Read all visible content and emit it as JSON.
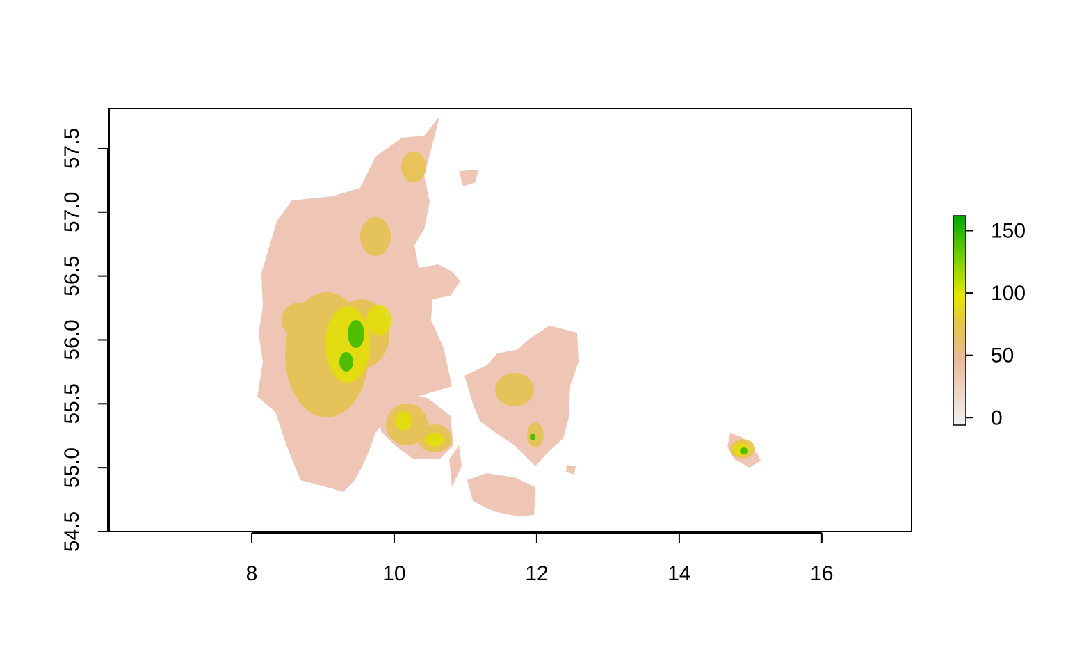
{
  "map": {
    "x_ticks": [
      "8",
      "10",
      "12",
      "14",
      "16"
    ],
    "y_ticks": [
      "54.5",
      "55.0",
      "55.5",
      "56.0",
      "56.5",
      "57.0",
      "57.5"
    ],
    "x_tick_values": [
      8,
      10,
      12,
      14,
      16
    ],
    "y_tick_values": [
      54.5,
      55.0,
      55.5,
      56.0,
      56.5,
      57.0,
      57.5
    ],
    "x_range": [
      6.0,
      17.26
    ],
    "y_range": [
      54.5,
      57.81
    ],
    "legend": {
      "ticks": [
        "0",
        "50",
        "100",
        "150"
      ],
      "tick_values": [
        0,
        50,
        100,
        150
      ],
      "range": [
        -6,
        162
      ],
      "colors": [
        "#f2f2f2",
        "#eabb9f",
        "#e6c24c",
        "#e6e600",
        "#75d000",
        "#00a600"
      ]
    },
    "land_color": "#efc6b6",
    "highland_color": "#e3c23e",
    "peak_color": "#6bc800"
  }
}
